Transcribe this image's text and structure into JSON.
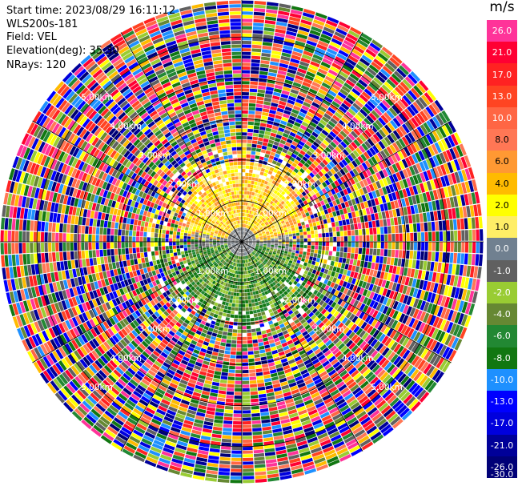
{
  "header": {
    "start_time": "Start time: 2023/08/29 16:11:12",
    "site": "WLS200s-181",
    "field": "Field: VEL",
    "elevation": "Elevation(deg): 35.30",
    "nrays": "NRays: 120"
  },
  "colorbar": {
    "unit": "m/s",
    "ticks": [
      "26.0",
      "21.0",
      "17.0",
      "13.0",
      "10.0",
      "8.0",
      "6.0",
      "4.0",
      "2.0",
      "1.0",
      "0.0",
      "-1.0",
      "-2.0",
      "-4.0",
      "-6.0",
      "-8.0",
      "-10.0",
      "-13.0",
      "-17.0",
      "-21.0",
      "-26.0",
      "-30.0"
    ],
    "colors": [
      "#ff3399",
      "#ff0033",
      "#ff2222",
      "#ff4422",
      "#ff6644",
      "#ff7755",
      "#ff9933",
      "#ffbb00",
      "#ffff00",
      "#ffee66",
      "#708090",
      "#606060",
      "#99cc33",
      "#668833",
      "#228833",
      "#117711",
      "#1e90ff",
      "#0000ff",
      "#0000dd",
      "#000099",
      "#000077"
    ]
  },
  "chart_data": {
    "type": "heatmap",
    "title": "",
    "projection": "polar PPI",
    "field": "VEL",
    "units": "m/s",
    "nrays": 120,
    "range_labels": [
      "1.00km",
      "2.00km",
      "3.00km",
      "4.00km",
      "5.00km"
    ],
    "range_rings_km": [
      1,
      2,
      3,
      4,
      5
    ],
    "max_range_km": 5.9,
    "value_range": [
      -30,
      26
    ],
    "pattern": {
      "north_near_field": "positive velocities (yellow/orange), 2 to 6 m/s",
      "south_near_field": "negative velocities (green), -2 to -6 m/s",
      "center": "near-zero (gray)",
      "far_field": "noise across full scale"
    }
  }
}
